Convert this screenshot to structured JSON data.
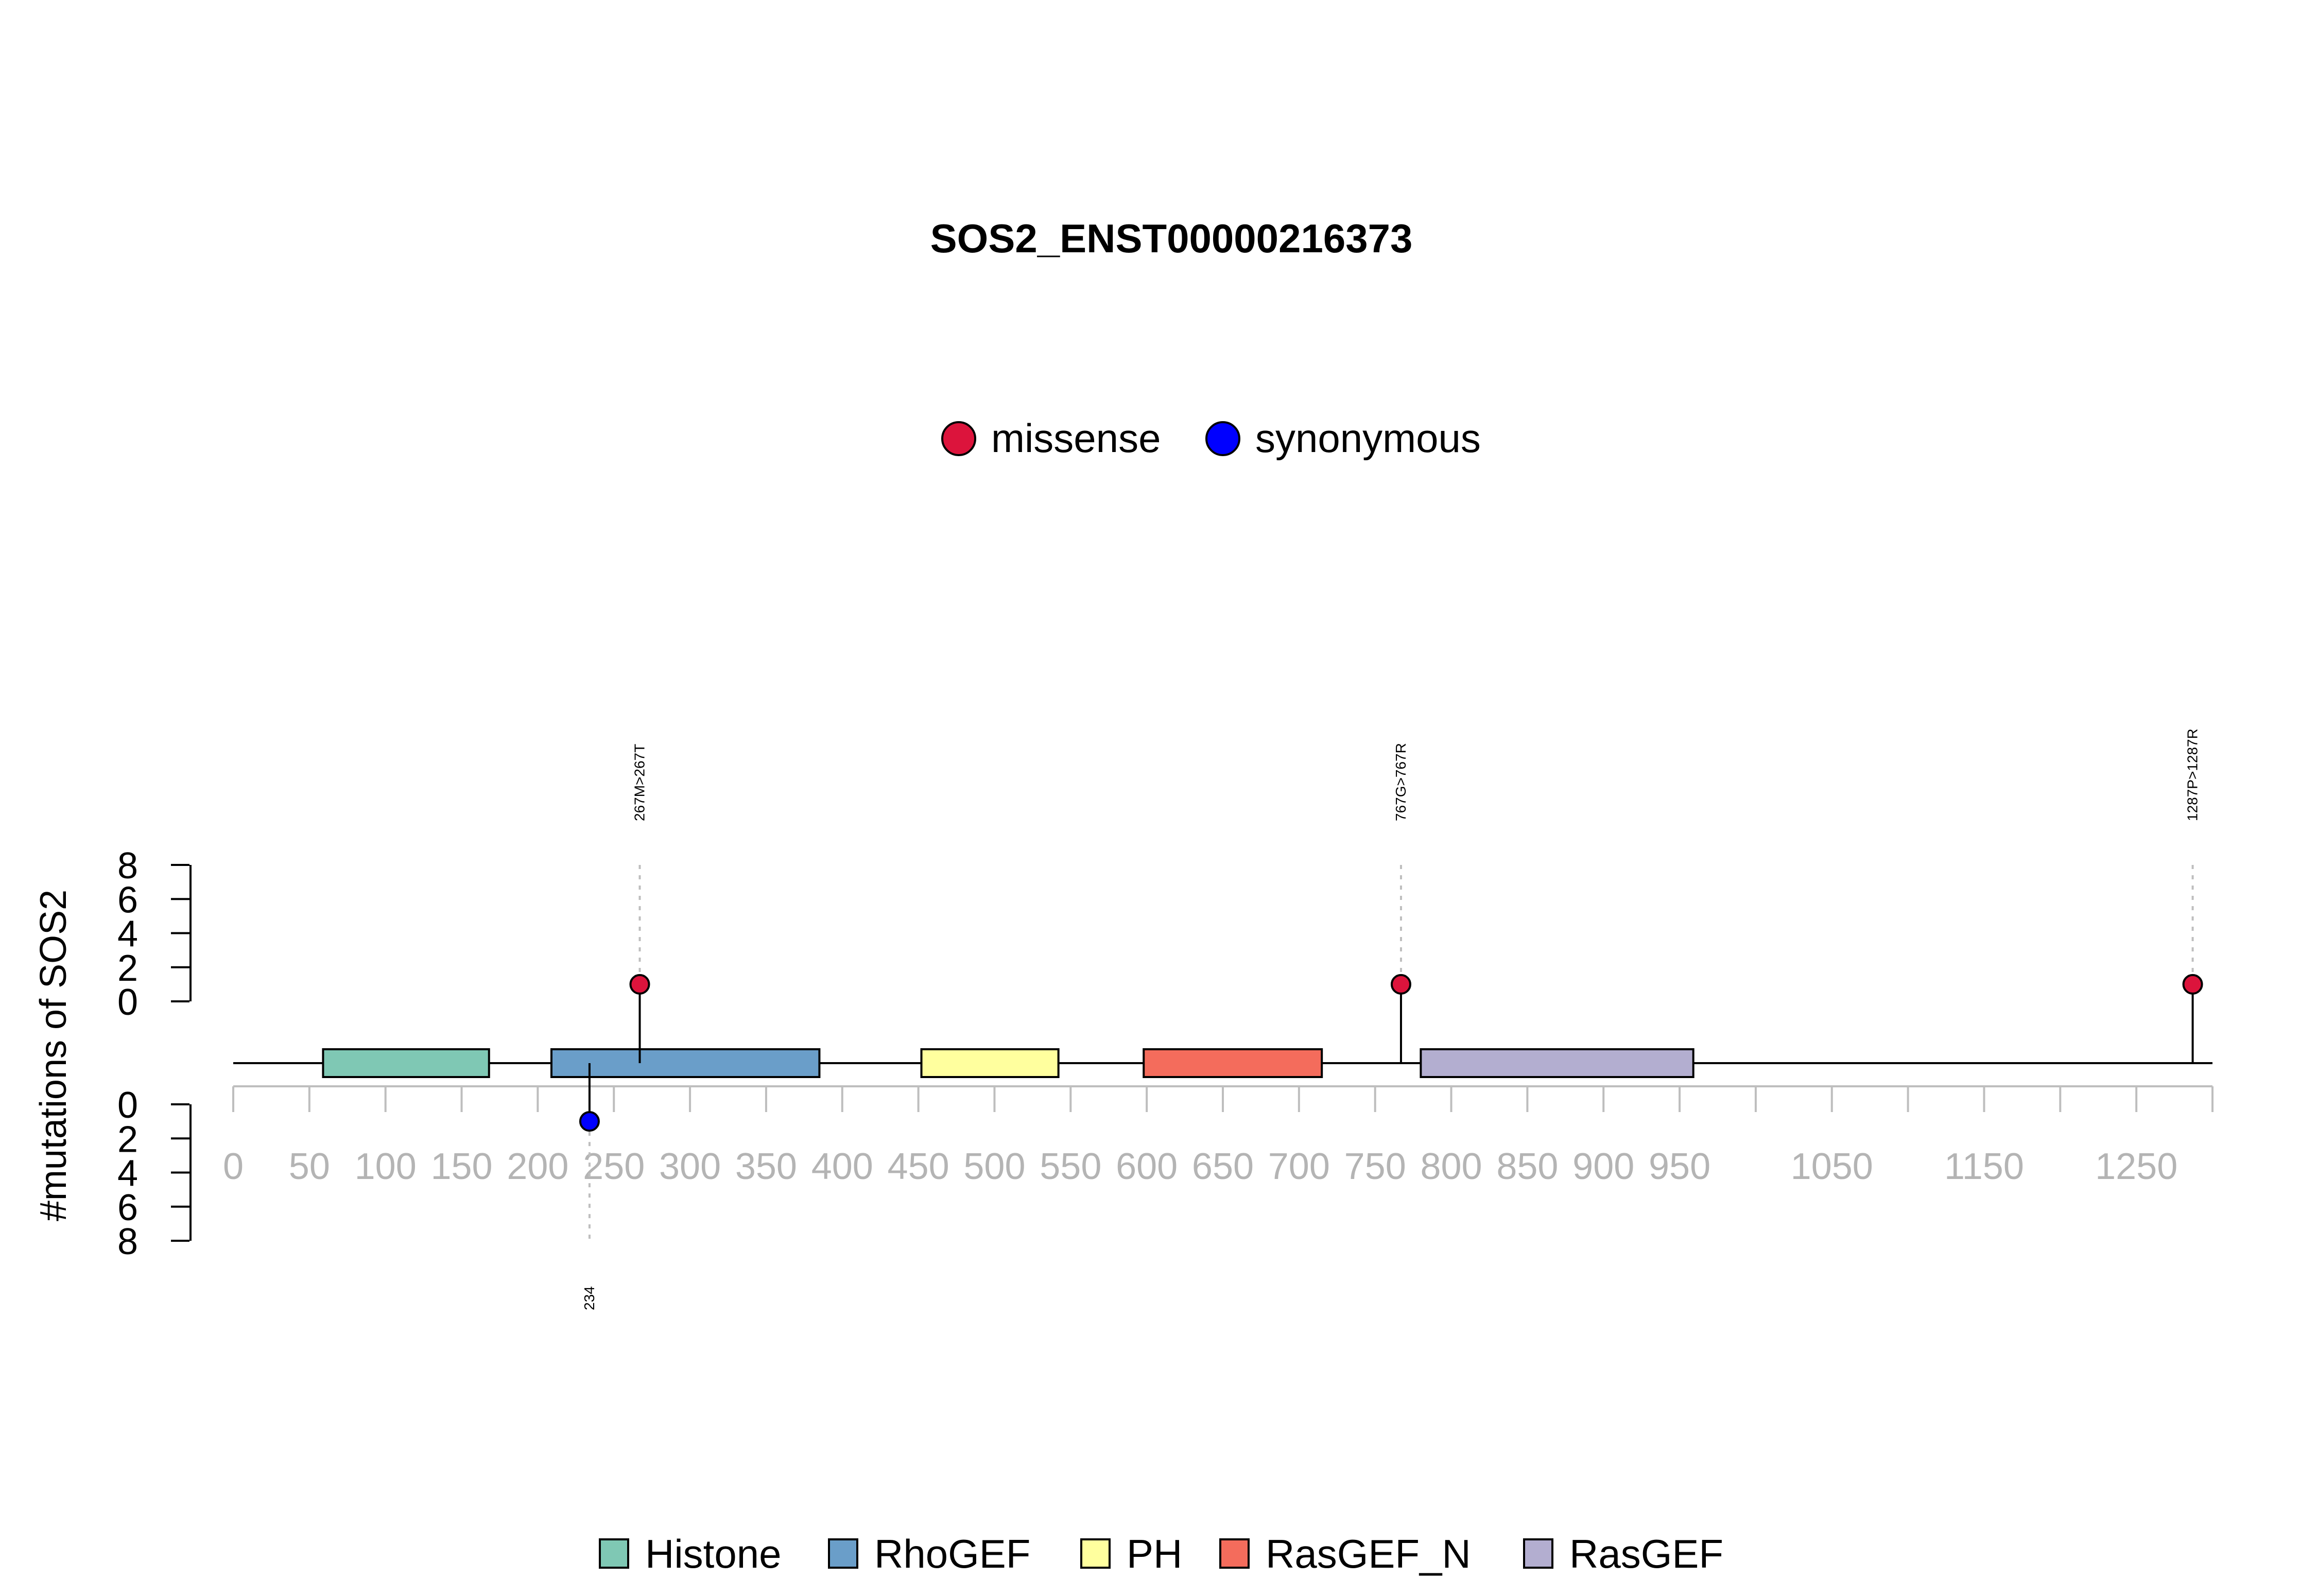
{
  "chart_data": {
    "type": "lollipop",
    "title": "SOS2_ENST00000216373",
    "ylabel": "#mutations of SOS2",
    "protein_length": 1300,
    "x_ticks": [
      0,
      50,
      100,
      150,
      200,
      250,
      300,
      350,
      400,
      450,
      500,
      550,
      600,
      650,
      700,
      750,
      800,
      850,
      900,
      950,
      1050,
      1150,
      1250
    ],
    "x_minor_ticks": [
      1000,
      1100,
      1200,
      1300
    ],
    "y_ticks": [
      0,
      2,
      4,
      6,
      8
    ],
    "ylim": [
      0,
      8
    ],
    "mutation_legend": [
      {
        "label": "missense",
        "color": "#dc143c"
      },
      {
        "label": "synonymous",
        "color": "#0000ff"
      }
    ],
    "domain_legend": [
      {
        "label": "Histone",
        "color": "#7fc8b4"
      },
      {
        "label": "RhoGEF",
        "color": "#6a9ec9"
      },
      {
        "label": "PH",
        "color": "#ffff9e"
      },
      {
        "label": "RasGEF_N",
        "color": "#f46c5c"
      },
      {
        "label": "RasGEF",
        "color": "#b3aed0"
      }
    ],
    "domains": [
      {
        "name": "Histone",
        "start": 59,
        "end": 168,
        "color": "#7fc8b4"
      },
      {
        "name": "RhoGEF",
        "start": 209,
        "end": 385,
        "color": "#6a9ec9"
      },
      {
        "name": "PH",
        "start": 452,
        "end": 542,
        "color": "#ffff9e"
      },
      {
        "name": "RasGEF_N",
        "start": 598,
        "end": 715,
        "color": "#f46c5c"
      },
      {
        "name": "RasGEF",
        "start": 780,
        "end": 959,
        "color": "#b3aed0"
      }
    ],
    "mutations": [
      {
        "position": 267,
        "count": 1,
        "type": "missense",
        "label": "267M>267T",
        "side": "top"
      },
      {
        "position": 767,
        "count": 1,
        "type": "missense",
        "label": "767G>767R",
        "side": "top"
      },
      {
        "position": 1287,
        "count": 1,
        "type": "missense",
        "label": "1287P>1287R",
        "side": "top"
      },
      {
        "position": 234,
        "count": 1,
        "type": "synonymous",
        "label": "234",
        "side": "bottom"
      }
    ]
  }
}
